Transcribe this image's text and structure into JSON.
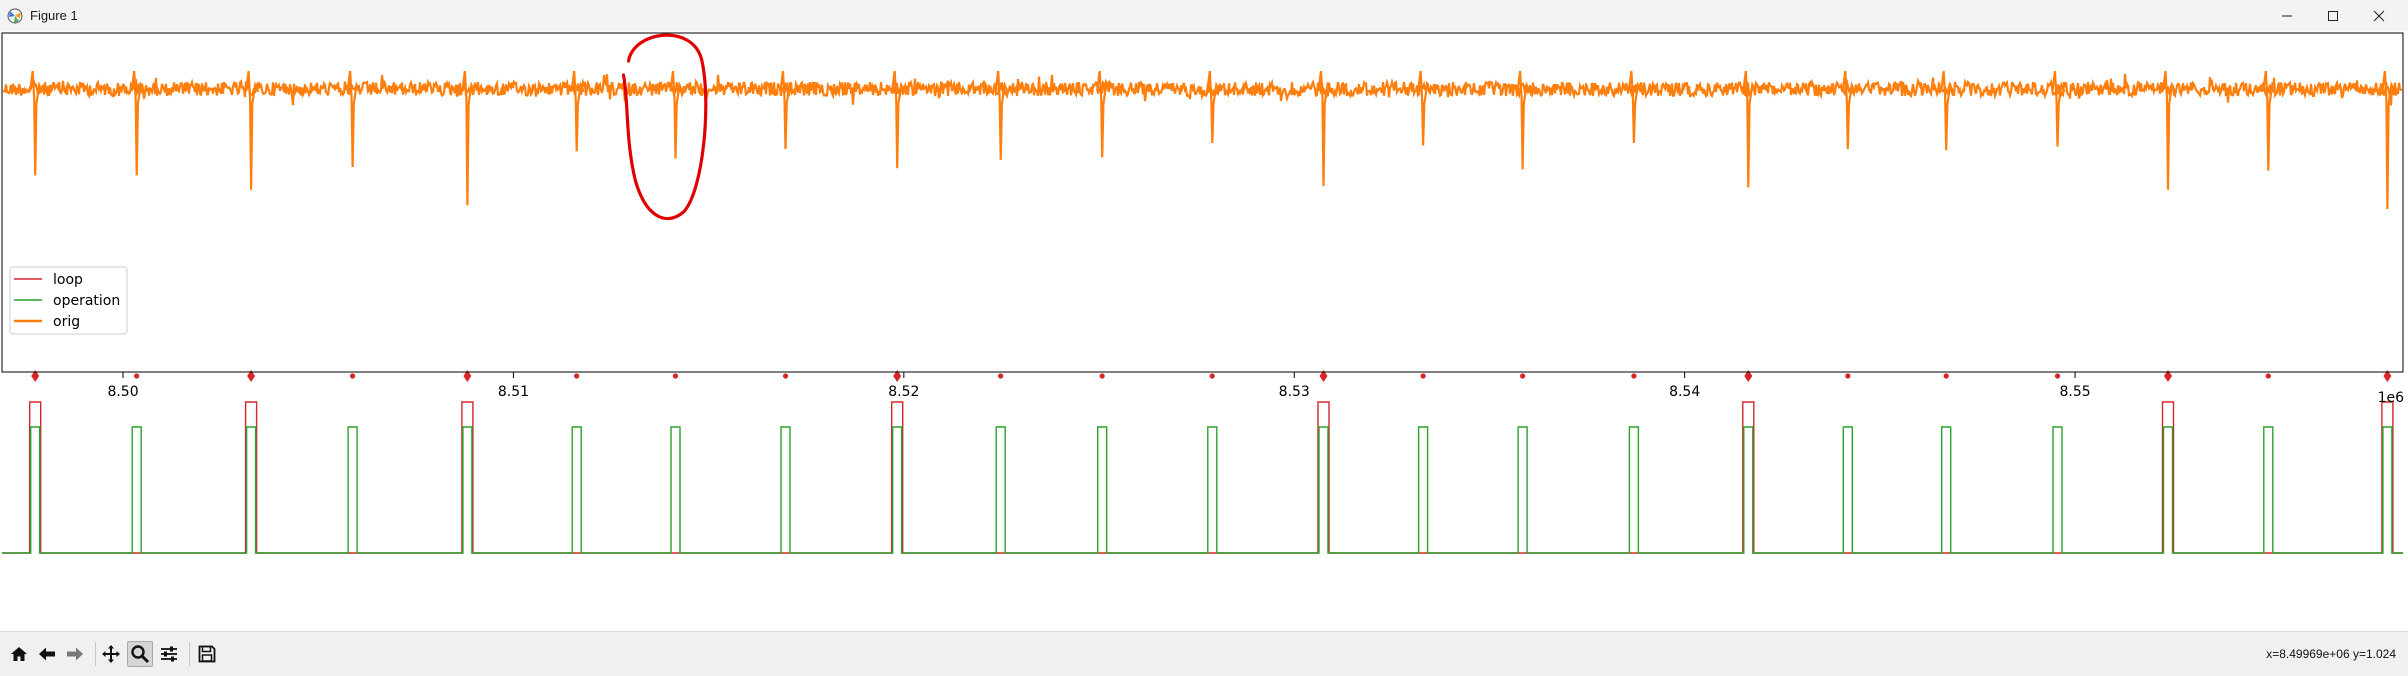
{
  "window": {
    "title": "Figure 1",
    "controls": [
      "minimize",
      "maximize",
      "close"
    ]
  },
  "chart_data": {
    "type": "line",
    "title": "",
    "xlabel": "",
    "ylabel": "",
    "x_offset_label": "1e6",
    "xlim": [
      8.4969,
      8.5584
    ],
    "x_ticks": [
      "8.50",
      "8.51",
      "8.52",
      "8.53",
      "8.54",
      "8.55"
    ],
    "x_tick_values": [
      8.5,
      8.51,
      8.52,
      8.53,
      8.54,
      8.55
    ],
    "y_ticks_visible": false,
    "grid": false,
    "legend": {
      "placement": "center-left",
      "entries": [
        {
          "name": "loop",
          "color": "#d62728"
        },
        {
          "name": "operation",
          "color": "#2ca02c"
        },
        {
          "name": "orig",
          "color": "#ff7f0e"
        }
      ]
    },
    "series": [
      {
        "name": "orig",
        "color": "#ff7f0e",
        "description_level": "noisy baseline with periodic downward spikes",
        "spike_x": [
          8.49775,
          8.50035,
          8.50328,
          8.50588,
          8.50882,
          8.51162,
          8.51415,
          8.51697,
          8.51983,
          8.52248,
          8.52508,
          8.5279,
          8.53075,
          8.5333,
          8.53585,
          8.5387,
          8.54163,
          8.54418,
          8.5467,
          8.54955,
          8.55238,
          8.55495,
          8.558
        ],
        "spike_depth": [
          0.72,
          0.72,
          0.84,
          0.65,
          0.97,
          0.52,
          0.58,
          0.5,
          0.66,
          0.59,
          0.57,
          0.45,
          0.81,
          0.47,
          0.67,
          0.45,
          0.82,
          0.5,
          0.51,
          0.48,
          0.84,
          0.68,
          1.0
        ]
      },
      {
        "name": "loop",
        "color": "#d62728",
        "pulse_x": [
          8.49775,
          8.50328,
          8.50882,
          8.51983,
          8.53075,
          8.54163,
          8.55238,
          8.558
        ]
      },
      {
        "name": "operation",
        "color": "#2ca02c",
        "pulse_x": [
          8.49775,
          8.50035,
          8.50328,
          8.50588,
          8.50882,
          8.51162,
          8.51415,
          8.51697,
          8.51983,
          8.52248,
          8.52508,
          8.5279,
          8.53075,
          8.5333,
          8.53585,
          8.5387,
          8.54163,
          8.54418,
          8.5467,
          8.54955,
          8.55238,
          8.55495,
          8.558
        ]
      }
    ],
    "markers": {
      "color": "#d62728",
      "diamond_x": [
        8.49775,
        8.50328,
        8.50882,
        8.51983,
        8.53075,
        8.54163,
        8.55238,
        8.558
      ],
      "dot_x": [
        8.50035,
        8.50588,
        8.51162,
        8.51415,
        8.51697,
        8.52248,
        8.52508,
        8.5279,
        8.5333,
        8.53585,
        8.5387,
        8.54418,
        8.5467,
        8.54955,
        8.55495
      ]
    },
    "annotation": {
      "kind": "hand-drawn red loop",
      "x_center": 8.5141,
      "color": "#e00000"
    }
  },
  "toolbar": {
    "buttons": [
      {
        "id": "home",
        "icon": "home-icon"
      },
      {
        "id": "back",
        "icon": "back-arrow-icon"
      },
      {
        "id": "forward",
        "icon": "forward-arrow-icon"
      },
      {
        "id": "pan",
        "icon": "pan-move-icon"
      },
      {
        "id": "zoom",
        "icon": "zoom-magnifier-icon",
        "active": true
      },
      {
        "id": "configure",
        "icon": "configure-subplots-icon"
      },
      {
        "id": "save",
        "icon": "save-floppy-icon"
      }
    ],
    "coordinate_readout": "x=8.49969e+06 y=1.024"
  }
}
